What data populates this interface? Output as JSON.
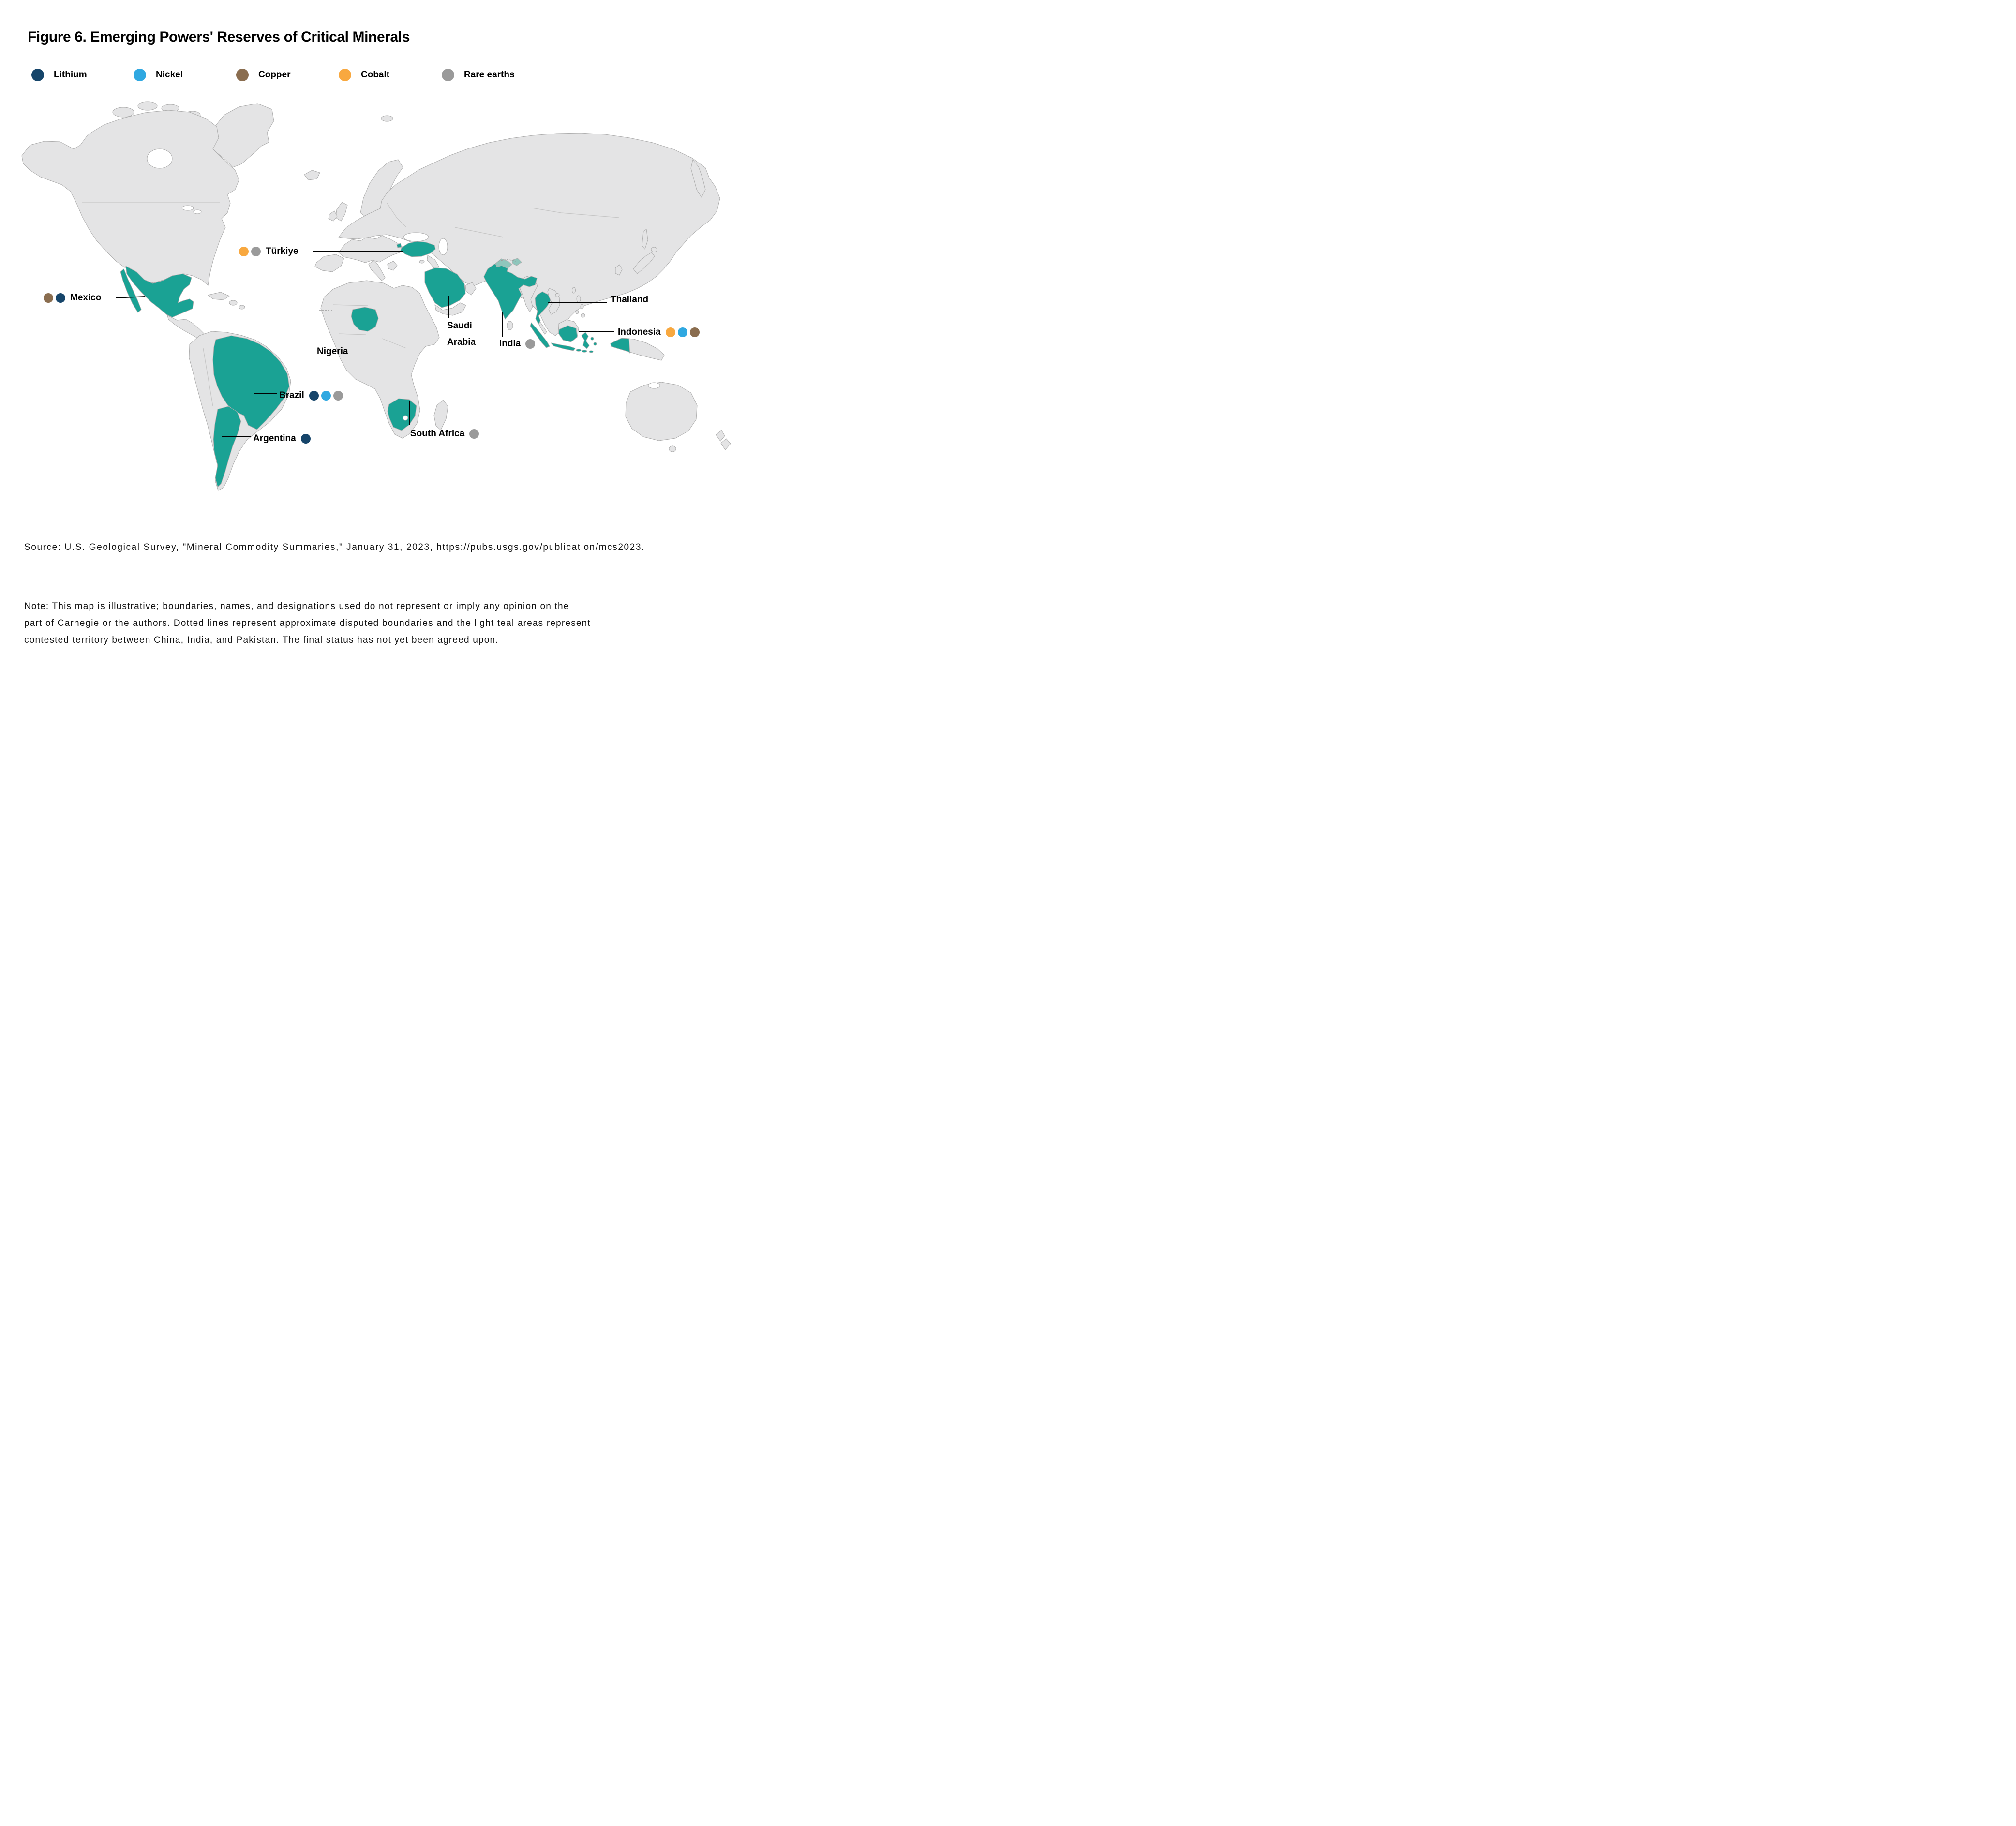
{
  "title": "Figure 6. Emerging Powers' Reserves of Critical Minerals",
  "colors": {
    "lithium": "#16456A",
    "nickel": "#2FA8E1",
    "copper": "#8A6D4F",
    "cobalt": "#F8A83F",
    "rare_earths": "#9A9A9A",
    "highlight": "#1AA294",
    "contested": "#8FC6BC",
    "land": "#E4E4E5",
    "land_border": "#ADADAD"
  },
  "legend": [
    {
      "label": "Lithium",
      "key": "lithium"
    },
    {
      "label": "Nickel",
      "key": "nickel"
    },
    {
      "label": "Copper",
      "key": "copper"
    },
    {
      "label": "Cobalt",
      "key": "cobalt"
    },
    {
      "label": "Rare earths",
      "key": "rare_earths"
    }
  ],
  "countries": [
    {
      "id": "turkiye",
      "label": "Türkiye",
      "minerals": [
        "cobalt",
        "rare_earths"
      ],
      "dots_side": "left"
    },
    {
      "id": "mexico",
      "label": "Mexico",
      "minerals": [
        "copper",
        "lithium"
      ],
      "dots_side": "left"
    },
    {
      "id": "brazil",
      "label": "Brazil",
      "minerals": [
        "lithium",
        "nickel",
        "rare_earths"
      ],
      "dots_side": "right"
    },
    {
      "id": "argentina",
      "label": "Argentina",
      "minerals": [
        "lithium"
      ],
      "dots_side": "right"
    },
    {
      "id": "nigeria",
      "label": "Nigeria",
      "minerals": [],
      "dots_side": "none"
    },
    {
      "id": "saudi-arabia",
      "label": "Saudi Arabia",
      "label_lines": [
        "Saudi",
        "Arabia"
      ],
      "minerals": [],
      "dots_side": "none"
    },
    {
      "id": "india",
      "label": "India",
      "minerals": [
        "rare_earths"
      ],
      "dots_side": "right"
    },
    {
      "id": "south-africa",
      "label": "South Africa",
      "minerals": [
        "rare_earths"
      ],
      "dots_side": "right"
    },
    {
      "id": "thailand",
      "label": "Thailand",
      "minerals": [],
      "dots_side": "none"
    },
    {
      "id": "indonesia",
      "label": "Indonesia",
      "minerals": [
        "cobalt",
        "nickel",
        "copper"
      ],
      "dots_side": "right"
    }
  ],
  "source": "Source: U.S. Geological Survey, \"Mineral Commodity Summaries,\" January 31, 2023, https://pubs.usgs.gov/publication/mcs2023.",
  "note_lines": [
    "Note: This map is illustrative; boundaries, names, and designations used do not represent or imply any opinion on the",
    "part of Carnegie or the authors. Dotted lines represent approximate disputed boundaries and the light teal areas represent",
    "contested territory between China, India, and Pakistan. The final status has not yet been agreed upon."
  ]
}
